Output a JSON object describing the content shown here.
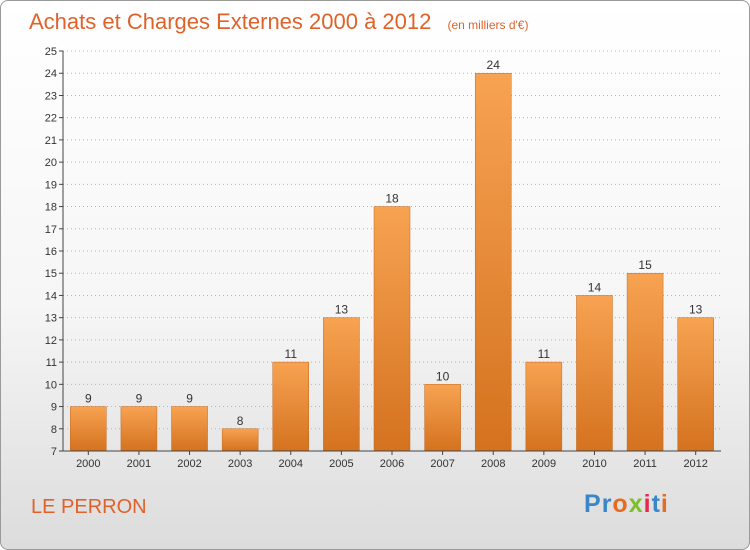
{
  "header": {
    "title": "Achats et Charges Externes 2000 à 2012",
    "unit": "(en milliers d'€)"
  },
  "footer": {
    "place": "LE PERRON",
    "logo": [
      "P",
      "r",
      "o",
      "x",
      "i",
      "t",
      "i"
    ],
    "logo_colors": [
      "#3a86c8",
      "#3a86c8",
      "#e66a1f",
      "#7cbf2b",
      "#e6294b",
      "#3a86c8",
      "#e66a1f"
    ]
  },
  "colors": {
    "bar_top": "#f7a352",
    "bar_bottom": "#d4721f",
    "accent": "#e0622a",
    "grid": "#b5b5b5"
  },
  "chart_data": {
    "type": "bar",
    "title": "Achats et Charges Externes 2000 à 2012",
    "categories": [
      "2000",
      "2001",
      "2002",
      "2003",
      "2004",
      "2005",
      "2006",
      "2007",
      "2008",
      "2009",
      "2010",
      "2011",
      "2012"
    ],
    "values": [
      9,
      9,
      9,
      8,
      11,
      13,
      18,
      10,
      24,
      11,
      14,
      15,
      13
    ],
    "ylim": [
      7,
      25
    ],
    "yticks": [
      7,
      8,
      9,
      10,
      11,
      12,
      13,
      14,
      15,
      16,
      17,
      18,
      19,
      20,
      21,
      22,
      23,
      24,
      25
    ],
    "grid": true,
    "xlabel": "",
    "ylabel": ""
  }
}
